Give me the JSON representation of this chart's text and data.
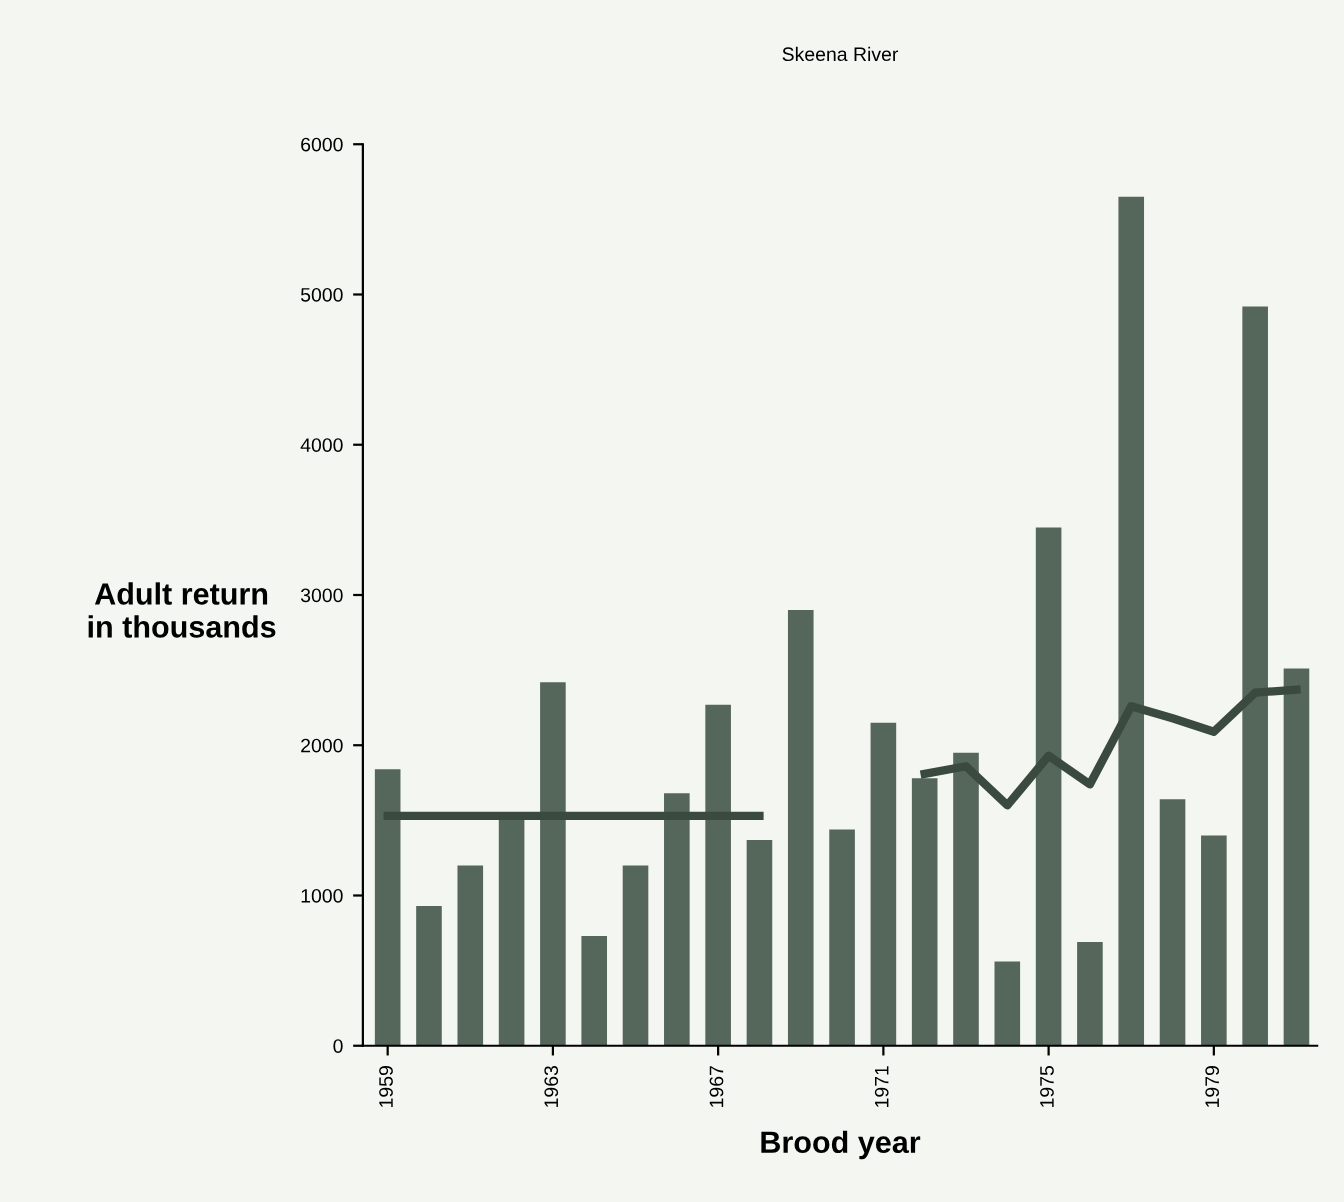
{
  "chart_data": {
    "type": "bar",
    "title": "Skeena River",
    "xlabel": "Brood year",
    "ylabel": "Adult return\nin thousands",
    "categories": [
      "1959",
      null,
      null,
      null,
      "1963",
      null,
      null,
      null,
      "1967",
      null,
      null,
      null,
      "1971",
      null,
      null,
      null,
      "1975",
      null,
      null,
      null,
      "1979",
      null,
      null
    ],
    "series": [
      {
        "color": "#55665a",
        "values": [
          1840,
          930,
          1200,
          1530,
          2420,
          730,
          1200,
          1680,
          2270,
          1370,
          2900,
          1440,
          2150,
          1780,
          1950,
          560,
          3450,
          690,
          5650,
          1640,
          1400,
          4920,
          2510
        ]
      },
      {
        "type": "line",
        "color": "#3b4a3f",
        "values": [
          1530,
          1530,
          1530,
          1530,
          1530,
          1530,
          1530,
          1530,
          1530,
          1530,
          null,
          null,
          null,
          null,
          null,
          null,
          null,
          null,
          null,
          null,
          null,
          null,
          null
        ]
      },
      {
        "type": "line",
        "color": "#3b4a3f",
        "values": [
          null,
          null,
          null,
          null,
          null,
          null,
          null,
          null,
          null,
          null,
          null,
          null,
          null,
          1810,
          1860,
          1600,
          1930,
          1740,
          2260,
          2180,
          2090,
          2350,
          2370
        ]
      }
    ],
    "ylim": [
      0,
      6000
    ],
    "yticks": [
      0,
      1000,
      2000,
      3000,
      4000,
      5000,
      6000
    ],
    "grid": false,
    "legend": false
  }
}
